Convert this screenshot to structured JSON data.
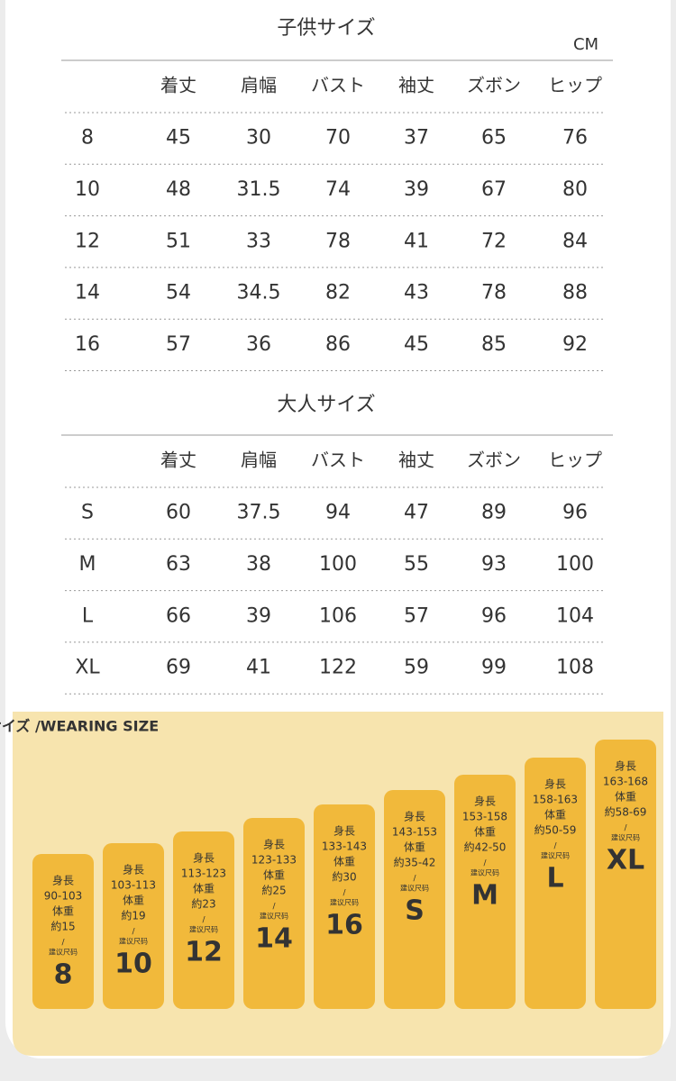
{
  "kids_table": {
    "title": "子供サイズ",
    "unit": "CM",
    "headers": [
      "着丈",
      "肩幅",
      "バスト",
      "袖丈",
      "ズボン",
      "ヒップ"
    ],
    "rows": [
      [
        "8",
        "45",
        "30",
        "70",
        "37",
        "65",
        "76"
      ],
      [
        "10",
        "48",
        "31.5",
        "74",
        "39",
        "67",
        "80"
      ],
      [
        "12",
        "51",
        "33",
        "78",
        "41",
        "72",
        "84"
      ],
      [
        "14",
        "54",
        "34.5",
        "82",
        "43",
        "78",
        "88"
      ],
      [
        "16",
        "57",
        "36",
        "86",
        "45",
        "85",
        "92"
      ]
    ]
  },
  "adult_table": {
    "title": "大人サイズ",
    "headers": [
      "着丈",
      "肩幅",
      "バスト",
      "袖丈",
      "ズボン",
      "ヒップ"
    ],
    "rows": [
      [
        "S",
        "60",
        "37.5",
        "94",
        "47",
        "89",
        "96"
      ],
      [
        "M",
        "63",
        "38",
        "100",
        "55",
        "93",
        "100"
      ],
      [
        "L",
        "66",
        "39",
        "106",
        "57",
        "96",
        "104"
      ],
      [
        "XL",
        "69",
        "41",
        "122",
        "59",
        "99",
        "108"
      ]
    ]
  },
  "wearing_size": {
    "title": "参考サイズ /WEARING SIZE",
    "separator": "/",
    "cards": [
      {
        "height_label": "身長",
        "height": "90-103",
        "weight_label": "体重",
        "weight": "約15",
        "size_label": "建议尺码",
        "size": "8"
      },
      {
        "height_label": "身長",
        "height": "103-113",
        "weight_label": "体重",
        "weight": "約19",
        "size_label": "建议尺码",
        "size": "10"
      },
      {
        "height_label": "身長",
        "height": "113-123",
        "weight_label": "体重",
        "weight": "約23",
        "size_label": "建议尺码",
        "size": "12"
      },
      {
        "height_label": "身長",
        "height": "123-133",
        "weight_label": "体重",
        "weight": "約25",
        "size_label": "建议尺码",
        "size": "14"
      },
      {
        "height_label": "身長",
        "height": "133-143",
        "weight_label": "体重",
        "weight": "約30",
        "size_label": "建议尺码",
        "size": "16"
      },
      {
        "height_label": "身長",
        "height": "143-153",
        "weight_label": "体重",
        "weight": "約35-42",
        "size_label": "建议尺码",
        "size": "S"
      },
      {
        "height_label": "身長",
        "height": "153-158",
        "weight_label": "体重",
        "weight": "約42-50",
        "size_label": "建议尺码",
        "size": "M"
      },
      {
        "height_label": "身長",
        "height": "158-163",
        "weight_label": "体重",
        "weight": "約50-59",
        "size_label": "建议尺码",
        "size": "L"
      },
      {
        "height_label": "身長",
        "height": "163-168",
        "weight_label": "体重",
        "weight": "約58-69",
        "size_label": "建议尺码",
        "size": "XL"
      }
    ]
  }
}
